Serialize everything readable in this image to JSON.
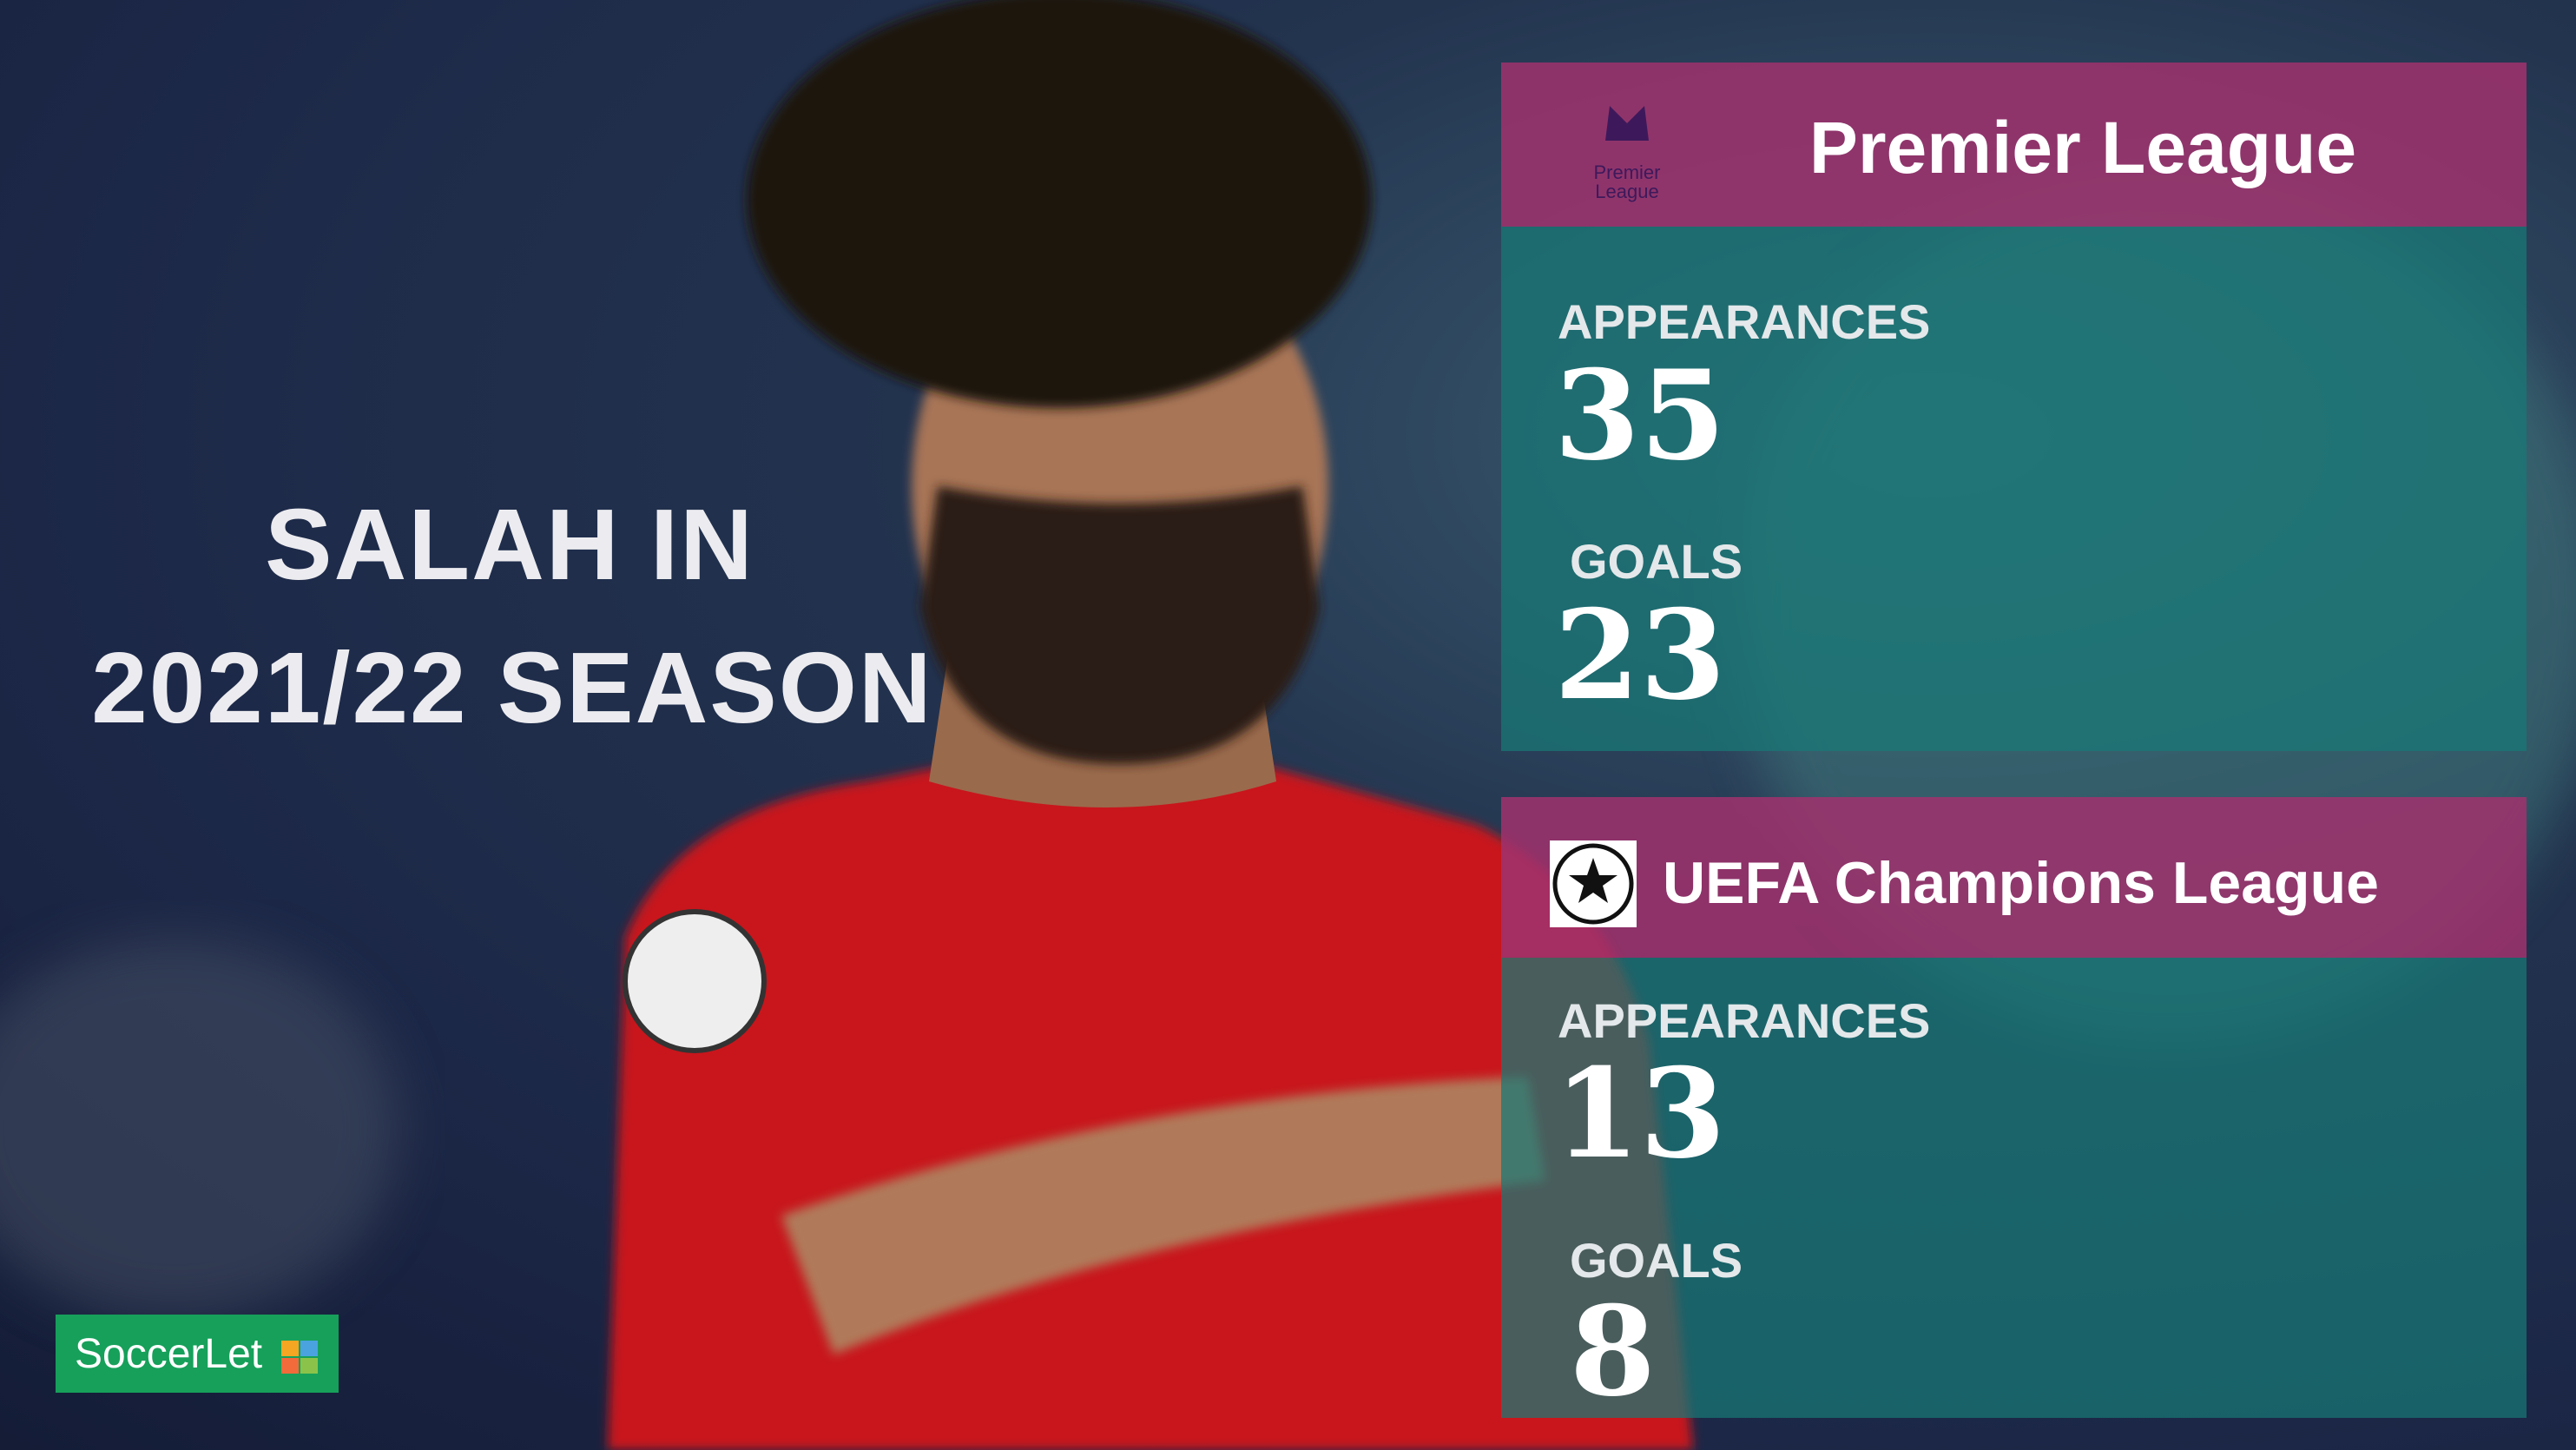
{
  "title": {
    "line1": "SALAH IN",
    "line2": "2021/22 SEASON"
  },
  "premier_league": {
    "name": "Premier League",
    "logo_text": "Premier League",
    "appearances": {
      "label": "APPEARANCES",
      "value": 35
    },
    "goals": {
      "label": "GOALS",
      "value": 23
    }
  },
  "champions_league": {
    "name": "UEFA Champions League",
    "appearances": {
      "label": "APPEARANCES",
      "value": 13
    },
    "goals": {
      "label": "GOALS",
      "value": 8
    }
  },
  "brand": {
    "name": "SoccerLet"
  }
}
